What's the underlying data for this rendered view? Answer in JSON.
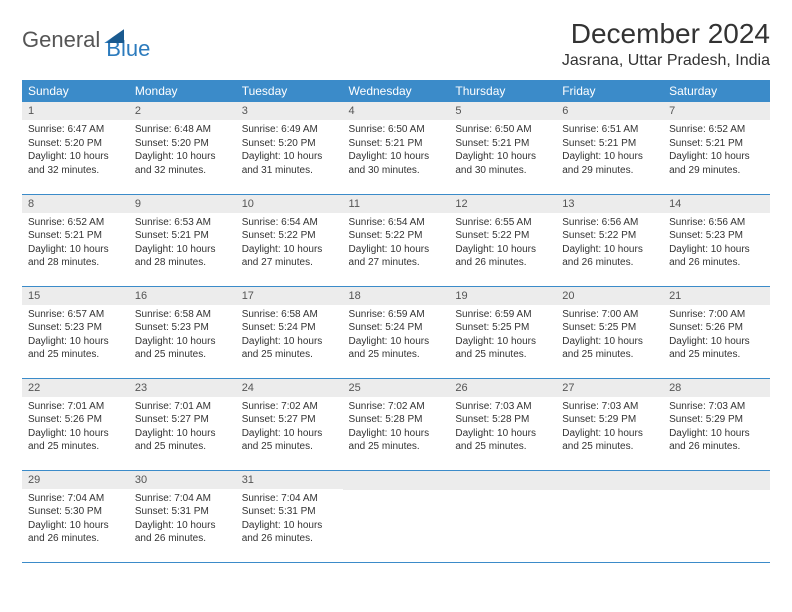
{
  "logo": {
    "part1": "General",
    "part2": "Blue"
  },
  "title": "December 2024",
  "location": "Jasrana, Uttar Pradesh, India",
  "header_bg": "#3b8bc9",
  "daynum_bg": "#ececec",
  "days_of_week": [
    "Sunday",
    "Monday",
    "Tuesday",
    "Wednesday",
    "Thursday",
    "Friday",
    "Saturday"
  ],
  "weeks": [
    [
      {
        "n": "1",
        "sr": "6:47 AM",
        "ss": "5:20 PM",
        "dl": "10 hours and 32 minutes."
      },
      {
        "n": "2",
        "sr": "6:48 AM",
        "ss": "5:20 PM",
        "dl": "10 hours and 32 minutes."
      },
      {
        "n": "3",
        "sr": "6:49 AM",
        "ss": "5:20 PM",
        "dl": "10 hours and 31 minutes."
      },
      {
        "n": "4",
        "sr": "6:50 AM",
        "ss": "5:21 PM",
        "dl": "10 hours and 30 minutes."
      },
      {
        "n": "5",
        "sr": "6:50 AM",
        "ss": "5:21 PM",
        "dl": "10 hours and 30 minutes."
      },
      {
        "n": "6",
        "sr": "6:51 AM",
        "ss": "5:21 PM",
        "dl": "10 hours and 29 minutes."
      },
      {
        "n": "7",
        "sr": "6:52 AM",
        "ss": "5:21 PM",
        "dl": "10 hours and 29 minutes."
      }
    ],
    [
      {
        "n": "8",
        "sr": "6:52 AM",
        "ss": "5:21 PM",
        "dl": "10 hours and 28 minutes."
      },
      {
        "n": "9",
        "sr": "6:53 AM",
        "ss": "5:21 PM",
        "dl": "10 hours and 28 minutes."
      },
      {
        "n": "10",
        "sr": "6:54 AM",
        "ss": "5:22 PM",
        "dl": "10 hours and 27 minutes."
      },
      {
        "n": "11",
        "sr": "6:54 AM",
        "ss": "5:22 PM",
        "dl": "10 hours and 27 minutes."
      },
      {
        "n": "12",
        "sr": "6:55 AM",
        "ss": "5:22 PM",
        "dl": "10 hours and 26 minutes."
      },
      {
        "n": "13",
        "sr": "6:56 AM",
        "ss": "5:22 PM",
        "dl": "10 hours and 26 minutes."
      },
      {
        "n": "14",
        "sr": "6:56 AM",
        "ss": "5:23 PM",
        "dl": "10 hours and 26 minutes."
      }
    ],
    [
      {
        "n": "15",
        "sr": "6:57 AM",
        "ss": "5:23 PM",
        "dl": "10 hours and 25 minutes."
      },
      {
        "n": "16",
        "sr": "6:58 AM",
        "ss": "5:23 PM",
        "dl": "10 hours and 25 minutes."
      },
      {
        "n": "17",
        "sr": "6:58 AM",
        "ss": "5:24 PM",
        "dl": "10 hours and 25 minutes."
      },
      {
        "n": "18",
        "sr": "6:59 AM",
        "ss": "5:24 PM",
        "dl": "10 hours and 25 minutes."
      },
      {
        "n": "19",
        "sr": "6:59 AM",
        "ss": "5:25 PM",
        "dl": "10 hours and 25 minutes."
      },
      {
        "n": "20",
        "sr": "7:00 AM",
        "ss": "5:25 PM",
        "dl": "10 hours and 25 minutes."
      },
      {
        "n": "21",
        "sr": "7:00 AM",
        "ss": "5:26 PM",
        "dl": "10 hours and 25 minutes."
      }
    ],
    [
      {
        "n": "22",
        "sr": "7:01 AM",
        "ss": "5:26 PM",
        "dl": "10 hours and 25 minutes."
      },
      {
        "n": "23",
        "sr": "7:01 AM",
        "ss": "5:27 PM",
        "dl": "10 hours and 25 minutes."
      },
      {
        "n": "24",
        "sr": "7:02 AM",
        "ss": "5:27 PM",
        "dl": "10 hours and 25 minutes."
      },
      {
        "n": "25",
        "sr": "7:02 AM",
        "ss": "5:28 PM",
        "dl": "10 hours and 25 minutes."
      },
      {
        "n": "26",
        "sr": "7:03 AM",
        "ss": "5:28 PM",
        "dl": "10 hours and 25 minutes."
      },
      {
        "n": "27",
        "sr": "7:03 AM",
        "ss": "5:29 PM",
        "dl": "10 hours and 25 minutes."
      },
      {
        "n": "28",
        "sr": "7:03 AM",
        "ss": "5:29 PM",
        "dl": "10 hours and 26 minutes."
      }
    ],
    [
      {
        "n": "29",
        "sr": "7:04 AM",
        "ss": "5:30 PM",
        "dl": "10 hours and 26 minutes."
      },
      {
        "n": "30",
        "sr": "7:04 AM",
        "ss": "5:31 PM",
        "dl": "10 hours and 26 minutes."
      },
      {
        "n": "31",
        "sr": "7:04 AM",
        "ss": "5:31 PM",
        "dl": "10 hours and 26 minutes."
      },
      null,
      null,
      null,
      null
    ]
  ],
  "labels": {
    "sunrise": "Sunrise:",
    "sunset": "Sunset:",
    "daylight": "Daylight:"
  }
}
